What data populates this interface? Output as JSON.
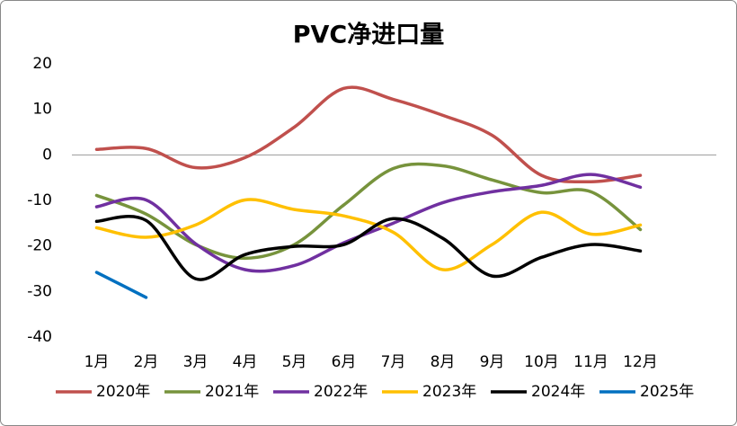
{
  "chart_data": {
    "type": "line",
    "title": "PVC净进口量",
    "categories": [
      "1月",
      "2月",
      "3月",
      "4月",
      "5月",
      "6月",
      "7月",
      "8月",
      "9月",
      "10月",
      "11月",
      "12月"
    ],
    "series": [
      {
        "name": "2020年",
        "color": "#c0504d",
        "values": [
          1.2,
          1.4,
          -2.8,
          -0.6,
          6.1,
          14.6,
          12.2,
          8.7,
          4.3,
          -4.5,
          -5.9,
          -4.5
        ]
      },
      {
        "name": "2021年",
        "color": "#77933c",
        "values": [
          -8.9,
          -13,
          -19.7,
          -22.7,
          -19.7,
          -11,
          -3,
          -2.4,
          -5.5,
          -8.3,
          -8.1,
          -16.4
        ]
      },
      {
        "name": "2022年",
        "color": "#7030a0",
        "values": [
          -11.4,
          -9.9,
          -19.5,
          -25.2,
          -24.3,
          -19.3,
          -15,
          -10.5,
          -8.1,
          -6.7,
          -4.3,
          -7.1
        ]
      },
      {
        "name": "2023年",
        "color": "#ffc000",
        "values": [
          -16,
          -18.1,
          -15.4,
          -9.9,
          -12,
          -13.4,
          -17,
          -25.2,
          -19.7,
          -12.6,
          -17.4,
          -15.4
        ]
      },
      {
        "name": "2024年",
        "color": "#000000",
        "values": [
          -14.6,
          -14.4,
          -27.2,
          -21.9,
          -20.1,
          -19.7,
          -14,
          -18.3,
          -26.6,
          -22.5,
          -19.7,
          -21.1
        ]
      },
      {
        "name": "2025年",
        "color": "#0070c0",
        "values": [
          -25.8,
          -31.3,
          null,
          null,
          null,
          null,
          null,
          null,
          null,
          null,
          null,
          null
        ]
      }
    ],
    "ylim": [
      -40,
      20
    ],
    "yticks": [
      -40,
      -30,
      -20,
      -10,
      0,
      10,
      20
    ],
    "legend": "bottom"
  }
}
